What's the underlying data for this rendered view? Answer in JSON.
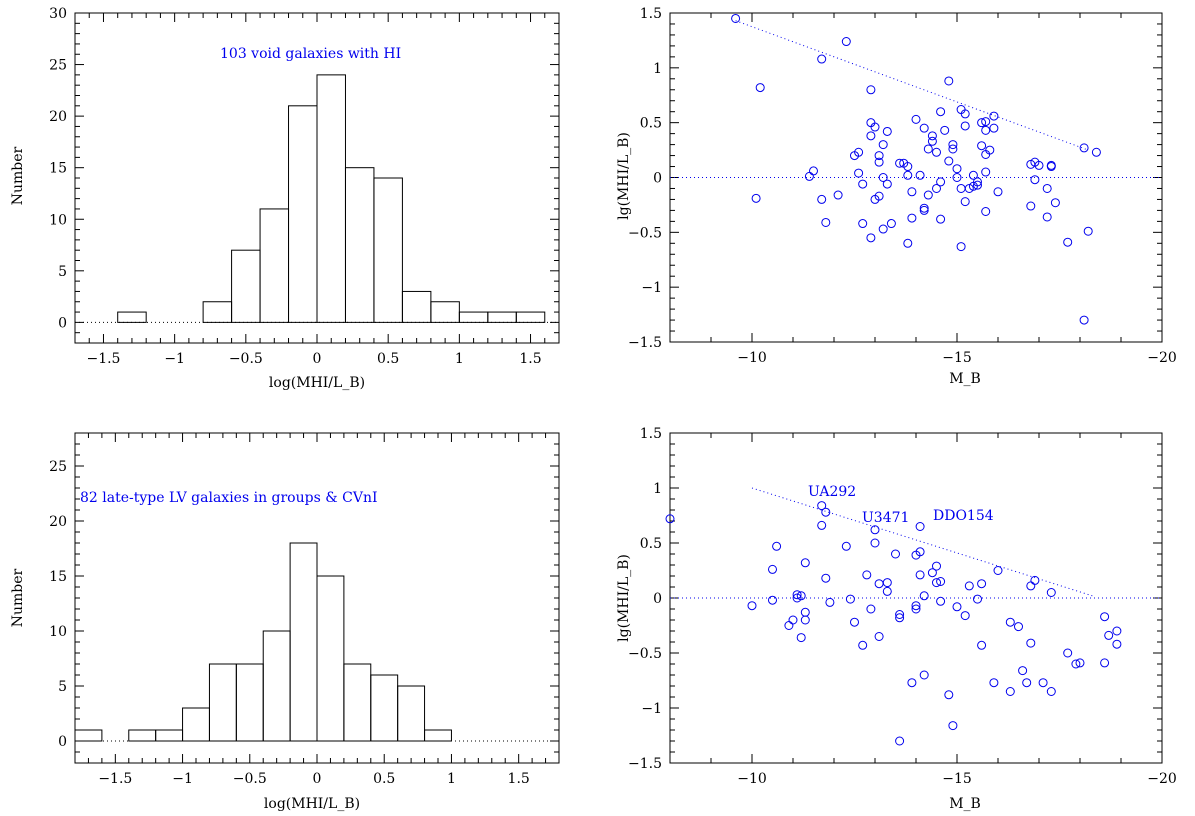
{
  "colors": {
    "axes": "#000000",
    "points": "#0000ee",
    "annotation": "#0000ee"
  },
  "chart_data": [
    {
      "id": "void-histogram",
      "type": "bar",
      "histogram": true,
      "annotation": "103 void galaxies with HI",
      "xlabel": "log(MHI/L_B)",
      "ylabel": "Number",
      "xlim": [
        -1.7,
        1.7
      ],
      "ylim": [
        -2,
        30
      ],
      "xticks": [
        -1.5,
        -1,
        -0.5,
        0,
        0.5,
        1,
        1.5
      ],
      "xtick_labels": [
        "−1.5",
        "−1",
        "−0.5",
        "0",
        "0.5",
        "1",
        "1.5"
      ],
      "yticks": [
        0,
        5,
        10,
        15,
        20,
        25,
        30
      ],
      "ytick_labels": [
        "0",
        "5",
        "10",
        "15",
        "20",
        "25",
        "30"
      ],
      "bin_edges": [
        -1.6,
        -1.4,
        -1.2,
        -1.0,
        -0.8,
        -0.6,
        -0.4,
        -0.2,
        0.0,
        0.2,
        0.4,
        0.6,
        0.8,
        1.0,
        1.2,
        1.4,
        1.6
      ],
      "counts": [
        0,
        1,
        0,
        0,
        2,
        7,
        11,
        21,
        24,
        15,
        14,
        3,
        2,
        1,
        1,
        1
      ],
      "baseline": 0
    },
    {
      "id": "void-scatter",
      "type": "scatter",
      "xlabel": "M_B",
      "ylabel": "lg(MHI/L_B)",
      "xlim": [
        -8,
        -20
      ],
      "ylim": [
        -1.5,
        1.5
      ],
      "xticks": [
        -10,
        -15,
        -20
      ],
      "xtick_labels": [
        "−10",
        "−15",
        "−20"
      ],
      "yticks": [
        -1.5,
        -1,
        -0.5,
        0,
        0.5,
        1,
        1.5
      ],
      "ytick_labels": [
        "−1.5",
        "−1",
        "−0.5",
        "0",
        "0.5",
        "1",
        "1.5"
      ],
      "hline": 0,
      "trend_line": [
        [
          -9.6,
          1.43
        ],
        [
          -18.2,
          0.25
        ]
      ],
      "points": [
        [
          -9.6,
          1.45
        ],
        [
          -10.2,
          0.82
        ],
        [
          -10.1,
          -0.19
        ],
        [
          -11.7,
          1.08
        ],
        [
          -12.3,
          1.24
        ],
        [
          -11.4,
          0.01
        ],
        [
          -11.5,
          0.06
        ],
        [
          -11.7,
          -0.2
        ],
        [
          -11.8,
          -0.41
        ],
        [
          -12.1,
          -0.16
        ],
        [
          -12.5,
          0.2
        ],
        [
          -12.6,
          0.23
        ],
        [
          -12.6,
          0.04
        ],
        [
          -12.7,
          -0.06
        ],
        [
          -12.7,
          -0.42
        ],
        [
          -12.9,
          0.5
        ],
        [
          -12.9,
          0.38
        ],
        [
          -13.0,
          0.46
        ],
        [
          -12.9,
          0.8
        ],
        [
          -13.1,
          0.2
        ],
        [
          -13.1,
          0.14
        ],
        [
          -13.2,
          0.3
        ],
        [
          -13.3,
          0.42
        ],
        [
          -13.2,
          0.0
        ],
        [
          -13.3,
          -0.06
        ],
        [
          -13.0,
          -0.2
        ],
        [
          -13.1,
          -0.17
        ],
        [
          -12.9,
          -0.55
        ],
        [
          -13.2,
          -0.47
        ],
        [
          -13.4,
          -0.42
        ],
        [
          -13.6,
          0.13
        ],
        [
          -13.7,
          0.13
        ],
        [
          -13.8,
          0.1
        ],
        [
          -13.8,
          0.02
        ],
        [
          -13.9,
          -0.13
        ],
        [
          -14.0,
          0.53
        ],
        [
          -14.2,
          0.45
        ],
        [
          -14.3,
          0.26
        ],
        [
          -14.1,
          0.02
        ],
        [
          -14.2,
          -0.28
        ],
        [
          -14.2,
          -0.3
        ],
        [
          -14.3,
          -0.16
        ],
        [
          -14.4,
          0.38
        ],
        [
          -14.4,
          0.33
        ],
        [
          -14.5,
          0.23
        ],
        [
          -14.6,
          0.6
        ],
        [
          -14.7,
          0.43
        ],
        [
          -14.8,
          0.88
        ],
        [
          -14.5,
          -0.1
        ],
        [
          -14.6,
          -0.04
        ],
        [
          -14.6,
          -0.38
        ],
        [
          -13.9,
          -0.37
        ],
        [
          -13.8,
          -0.6
        ],
        [
          -14.8,
          0.15
        ],
        [
          -14.9,
          0.3
        ],
        [
          -14.9,
          0.26
        ],
        [
          -15.0,
          0.08
        ],
        [
          -15.0,
          0.0
        ],
        [
          -15.1,
          0.62
        ],
        [
          -15.2,
          0.58
        ],
        [
          -15.2,
          0.47
        ],
        [
          -15.1,
          -0.1
        ],
        [
          -15.2,
          -0.22
        ],
        [
          -15.1,
          -0.63
        ],
        [
          -15.3,
          -0.1
        ],
        [
          -15.4,
          0.02
        ],
        [
          -15.5,
          -0.04
        ],
        [
          -15.5,
          -0.07
        ],
        [
          -15.4,
          -0.08
        ],
        [
          -15.6,
          0.5
        ],
        [
          -15.7,
          0.51
        ],
        [
          -15.7,
          0.43
        ],
        [
          -15.6,
          0.29
        ],
        [
          -15.7,
          0.21
        ],
        [
          -15.8,
          0.25
        ],
        [
          -15.7,
          0.05
        ],
        [
          -15.7,
          -0.31
        ],
        [
          -15.9,
          0.56
        ],
        [
          -15.9,
          0.45
        ],
        [
          -16.0,
          -0.13
        ],
        [
          -16.8,
          0.12
        ],
        [
          -16.9,
          0.14
        ],
        [
          -17.0,
          0.11
        ],
        [
          -16.9,
          -0.02
        ],
        [
          -16.8,
          -0.26
        ],
        [
          -17.3,
          0.11
        ],
        [
          -17.3,
          0.1
        ],
        [
          -17.2,
          -0.1
        ],
        [
          -17.2,
          -0.36
        ],
        [
          -17.4,
          -0.23
        ],
        [
          -17.7,
          -0.59
        ],
        [
          -18.1,
          0.27
        ],
        [
          -18.2,
          -0.49
        ],
        [
          -18.4,
          0.23
        ],
        [
          -18.1,
          -1.3
        ]
      ]
    },
    {
      "id": "lv-histogram",
      "type": "bar",
      "histogram": true,
      "annotation": "82 late-type LV galaxies in groups & CVnI",
      "xlabel": "log(MHI/L_B)",
      "ylabel": "Number",
      "xlim": [
        -1.8,
        1.8
      ],
      "ylim": [
        -2,
        28
      ],
      "xticks": [
        -1.5,
        -1,
        -0.5,
        0,
        0.5,
        1,
        1.5
      ],
      "xtick_labels": [
        "−1.5",
        "−1",
        "−0.5",
        "0",
        "0.5",
        "1",
        "1.5"
      ],
      "yticks": [
        0,
        5,
        10,
        15,
        20,
        25
      ],
      "ytick_labels": [
        "0",
        "5",
        "10",
        "15",
        "20",
        "25"
      ],
      "bin_edges": [
        -1.8,
        -1.6,
        -1.4,
        -1.2,
        -1.0,
        -0.8,
        -0.6,
        -0.4,
        -0.2,
        0.0,
        0.2,
        0.4,
        0.6,
        0.8,
        1.0,
        1.2,
        1.4
      ],
      "counts": [
        1,
        0,
        1,
        1,
        3,
        7,
        7,
        10,
        18,
        15,
        7,
        6,
        5,
        1,
        0,
        0
      ],
      "baseline": 0
    },
    {
      "id": "lv-scatter",
      "type": "scatter",
      "xlabel": "M_B",
      "ylabel": "lg(MHI/L_B)",
      "xlim": [
        -8,
        -20
      ],
      "ylim": [
        -1.5,
        1.5
      ],
      "xticks": [
        -10,
        -15,
        -20
      ],
      "xtick_labels": [
        "−10",
        "−15",
        "−20"
      ],
      "yticks": [
        -1.5,
        -1,
        -0.5,
        0,
        0.5,
        1,
        1.5
      ],
      "ytick_labels": [
        "−1.5",
        "−1",
        "−0.5",
        "0",
        "0.5",
        "1",
        "1.5"
      ],
      "hline": 0,
      "trend_line": [
        [
          -10.0,
          1.0
        ],
        [
          -18.3,
          0.02
        ]
      ],
      "annotations": [
        {
          "text": "UA292",
          "x": -10.5,
          "y": 0.9
        },
        {
          "text": "U3471",
          "x": -12.2,
          "y": 0.62
        },
        {
          "text": "DDO154",
          "x": -14.1,
          "y": 0.7
        }
      ],
      "points": [
        [
          -8.0,
          0.72
        ],
        [
          -10.0,
          -0.07
        ],
        [
          -10.5,
          0.26
        ],
        [
          -10.6,
          0.47
        ],
        [
          -10.5,
          -0.02
        ],
        [
          -10.9,
          -0.25
        ],
        [
          -11.0,
          -0.2
        ],
        [
          -11.1,
          0.0
        ],
        [
          -11.1,
          0.03
        ],
        [
          -11.2,
          0.02
        ],
        [
          -11.2,
          -0.36
        ],
        [
          -11.3,
          -0.2
        ],
        [
          -11.3,
          -0.13
        ],
        [
          -11.3,
          0.32
        ],
        [
          -11.7,
          0.66
        ],
        [
          -11.7,
          0.84
        ],
        [
          -11.8,
          0.78
        ],
        [
          -11.8,
          0.18
        ],
        [
          -11.9,
          -0.04
        ],
        [
          -12.3,
          0.47
        ],
        [
          -12.4,
          -0.01
        ],
        [
          -12.5,
          -0.22
        ],
        [
          -12.7,
          -0.43
        ],
        [
          -12.8,
          0.21
        ],
        [
          -12.9,
          -0.1
        ],
        [
          -13.0,
          0.62
        ],
        [
          -13.0,
          0.5
        ],
        [
          -13.1,
          -0.35
        ],
        [
          -13.1,
          0.13
        ],
        [
          -13.3,
          0.14
        ],
        [
          -13.3,
          0.06
        ],
        [
          -13.5,
          0.4
        ],
        [
          -13.6,
          -0.15
        ],
        [
          -13.6,
          -0.18
        ],
        [
          -13.6,
          -1.3
        ],
        [
          -13.9,
          -0.77
        ],
        [
          -14.0,
          -0.07
        ],
        [
          -14.0,
          -0.1
        ],
        [
          -14.0,
          0.39
        ],
        [
          -14.1,
          0.65
        ],
        [
          -14.1,
          0.42
        ],
        [
          -14.1,
          0.21
        ],
        [
          -14.2,
          -0.7
        ],
        [
          -14.2,
          0.02
        ],
        [
          -14.4,
          0.23
        ],
        [
          -14.5,
          0.14
        ],
        [
          -14.5,
          0.29
        ],
        [
          -14.6,
          -0.03
        ],
        [
          -14.6,
          0.15
        ],
        [
          -14.8,
          -0.88
        ],
        [
          -14.9,
          -1.16
        ],
        [
          -15.0,
          -0.08
        ],
        [
          -15.2,
          -0.16
        ],
        [
          -15.3,
          0.11
        ],
        [
          -15.5,
          -0.01
        ],
        [
          -15.6,
          -0.43
        ],
        [
          -15.6,
          0.13
        ],
        [
          -15.9,
          -0.77
        ],
        [
          -16.0,
          0.25
        ],
        [
          -16.3,
          -0.22
        ],
        [
          -16.3,
          -0.85
        ],
        [
          -16.5,
          -0.26
        ],
        [
          -16.6,
          -0.66
        ],
        [
          -16.7,
          -0.77
        ],
        [
          -16.8,
          0.11
        ],
        [
          -16.8,
          -0.41
        ],
        [
          -16.9,
          0.16
        ],
        [
          -17.1,
          -0.77
        ],
        [
          -17.3,
          -0.85
        ],
        [
          -17.3,
          0.05
        ],
        [
          -17.7,
          -0.5
        ],
        [
          -17.9,
          -0.6
        ],
        [
          -18.0,
          -0.59
        ],
        [
          -18.6,
          -0.59
        ],
        [
          -18.6,
          -0.17
        ],
        [
          -18.7,
          -0.34
        ],
        [
          -18.9,
          -0.3
        ],
        [
          -18.9,
          -0.42
        ]
      ]
    }
  ]
}
